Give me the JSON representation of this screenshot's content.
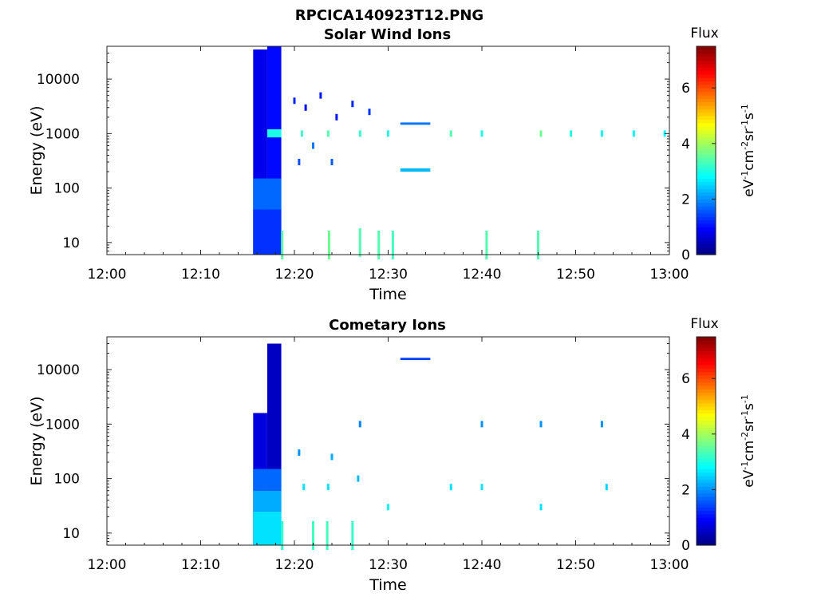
{
  "figure_title": "RPCICA140923T12.PNG",
  "chart_data": [
    {
      "type": "heatmap",
      "title": "Solar Wind Ions",
      "xlabel": "Time",
      "ylabel": "Energy (eV)",
      "x_ticks": [
        "12:00",
        "12:10",
        "12:20",
        "12:30",
        "12:40",
        "12:50",
        "13:00"
      ],
      "x_range_minutes": [
        0,
        60
      ],
      "y_ticks": [
        "10",
        "100",
        "1000",
        "10000"
      ],
      "y_range_ev": [
        6,
        40000
      ],
      "y_scale": "log",
      "colorbar": {
        "label": "Flux",
        "unit_label": "eV-1cm-2sr-1s-1",
        "ticks": [
          "0",
          "2",
          "4",
          "6"
        ],
        "range": [
          0,
          7.5
        ],
        "colormap": "jet"
      },
      "blocks": [
        {
          "t0": 15.6,
          "t1": 17.1,
          "e0": 6,
          "e1": 35000,
          "flux": 0.8
        },
        {
          "t0": 17.1,
          "t1": 18.6,
          "e0": 6,
          "e1": 40000,
          "flux": 1.0
        },
        {
          "t0": 15.6,
          "t1": 18.6,
          "e0": 40,
          "e1": 150,
          "flux": 1.7
        },
        {
          "t0": 15.6,
          "t1": 18.6,
          "e0": 6,
          "e1": 40,
          "flux": 1.3
        },
        {
          "t0": 17.1,
          "t1": 18.6,
          "e0": 850,
          "e1": 1200,
          "flux": 3.0
        },
        {
          "t0": 31.3,
          "t1": 34.5,
          "e0": 1450,
          "e1": 1600,
          "flux": 1.8
        },
        {
          "t0": 31.3,
          "t1": 34.5,
          "e0": 200,
          "e1": 230,
          "flux": 2.3
        }
      ],
      "pixels": [
        {
          "t": 18.7,
          "e": 9,
          "flux": 3.5
        },
        {
          "t": 23.7,
          "e": 9,
          "flux": 3.6
        },
        {
          "t": 27.0,
          "e": 10,
          "flux": 3.4
        },
        {
          "t": 29.0,
          "e": 9,
          "flux": 3.4
        },
        {
          "t": 30.5,
          "e": 9,
          "flux": 3.3
        },
        {
          "t": 40.5,
          "e": 9,
          "flux": 3.4
        },
        {
          "t": 46.0,
          "e": 9,
          "flux": 3.4
        },
        {
          "t": 20.8,
          "e": 1000,
          "flux": 3.2
        },
        {
          "t": 23.6,
          "e": 1000,
          "flux": 3.4
        },
        {
          "t": 27.0,
          "e": 1000,
          "flux": 3.2
        },
        {
          "t": 30.0,
          "e": 1000,
          "flux": 3.0
        },
        {
          "t": 36.7,
          "e": 1000,
          "flux": 3.4
        },
        {
          "t": 40.0,
          "e": 1000,
          "flux": 3.0
        },
        {
          "t": 46.3,
          "e": 1000,
          "flux": 3.6
        },
        {
          "t": 49.5,
          "e": 1000,
          "flux": 3.0
        },
        {
          "t": 52.8,
          "e": 1000,
          "flux": 2.8
        },
        {
          "t": 56.2,
          "e": 1000,
          "flux": 2.8
        },
        {
          "t": 59.5,
          "e": 1000,
          "flux": 2.8
        },
        {
          "t": 20.0,
          "e": 4000,
          "flux": 1.2
        },
        {
          "t": 21.2,
          "e": 3000,
          "flux": 1.0
        },
        {
          "t": 22.8,
          "e": 5000,
          "flux": 1.1
        },
        {
          "t": 24.5,
          "e": 2000,
          "flux": 1.1
        },
        {
          "t": 26.2,
          "e": 3500,
          "flux": 1.2
        },
        {
          "t": 28.0,
          "e": 2500,
          "flux": 1.3
        },
        {
          "t": 20.5,
          "e": 300,
          "flux": 1.5
        },
        {
          "t": 24.0,
          "e": 300,
          "flux": 1.6
        },
        {
          "t": 22.0,
          "e": 600,
          "flux": 1.8
        }
      ]
    },
    {
      "type": "heatmap",
      "title": "Cometary Ions",
      "xlabel": "Time",
      "ylabel": "Energy (eV)",
      "x_ticks": [
        "12:00",
        "12:10",
        "12:20",
        "12:30",
        "12:40",
        "12:50",
        "13:00"
      ],
      "x_range_minutes": [
        0,
        60
      ],
      "y_ticks": [
        "10",
        "100",
        "1000",
        "10000"
      ],
      "y_range_ev": [
        6,
        40000
      ],
      "y_scale": "log",
      "colorbar": {
        "label": "Flux",
        "unit_label": "eV-1cm-2sr-1s-1",
        "ticks": [
          "0",
          "2",
          "4",
          "6"
        ],
        "range": [
          0,
          7.5
        ],
        "colormap": "jet"
      },
      "blocks": [
        {
          "t0": 15.6,
          "t1": 17.1,
          "e0": 6,
          "e1": 1600,
          "flux": 0.7
        },
        {
          "t0": 17.1,
          "t1": 18.6,
          "e0": 6,
          "e1": 30000,
          "flux": 0.5
        },
        {
          "t0": 15.6,
          "t1": 18.6,
          "e0": 6,
          "e1": 25,
          "flux": 2.6
        },
        {
          "t0": 15.6,
          "t1": 18.6,
          "e0": 25,
          "e1": 60,
          "flux": 2.2
        },
        {
          "t0": 15.6,
          "t1": 18.6,
          "e0": 60,
          "e1": 150,
          "flux": 1.7
        },
        {
          "t0": 31.3,
          "t1": 34.5,
          "e0": 15000,
          "e1": 16500,
          "flux": 1.4
        }
      ],
      "pixels": [
        {
          "t": 18.7,
          "e": 9,
          "flux": 3.2
        },
        {
          "t": 22.0,
          "e": 9,
          "flux": 3.3
        },
        {
          "t": 23.5,
          "e": 9,
          "flux": 3.3
        },
        {
          "t": 26.2,
          "e": 9,
          "flux": 3.2
        },
        {
          "t": 21.0,
          "e": 70,
          "flux": 2.6
        },
        {
          "t": 23.6,
          "e": 70,
          "flux": 2.6
        },
        {
          "t": 30.0,
          "e": 30,
          "flux": 2.8
        },
        {
          "t": 36.7,
          "e": 70,
          "flux": 2.6
        },
        {
          "t": 40.0,
          "e": 70,
          "flux": 2.6
        },
        {
          "t": 46.3,
          "e": 30,
          "flux": 2.6
        },
        {
          "t": 53.3,
          "e": 70,
          "flux": 2.5
        },
        {
          "t": 27.0,
          "e": 1000,
          "flux": 1.9
        },
        {
          "t": 40.0,
          "e": 1000,
          "flux": 2.0
        },
        {
          "t": 46.3,
          "e": 1000,
          "flux": 2.0
        },
        {
          "t": 52.8,
          "e": 1000,
          "flux": 2.0
        },
        {
          "t": 20.5,
          "e": 300,
          "flux": 2.0
        },
        {
          "t": 24.0,
          "e": 250,
          "flux": 2.2
        },
        {
          "t": 26.8,
          "e": 100,
          "flux": 2.3
        }
      ]
    }
  ]
}
